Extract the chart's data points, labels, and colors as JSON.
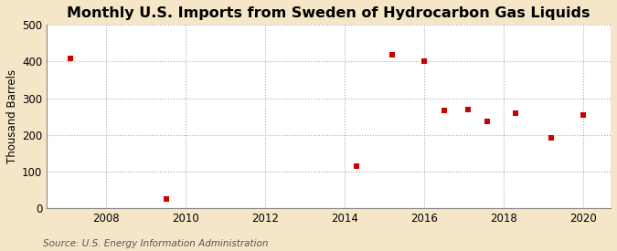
{
  "title": "Monthly U.S. Imports from Sweden of Hydrocarbon Gas Liquids",
  "ylabel": "Thousand Barrels",
  "source": "Source: U.S. Energy Information Administration",
  "fig_background_color": "#f5e6c8",
  "plot_background_color": "#ffffff",
  "scatter_color": "#cc0000",
  "x_data": [
    2007.1,
    2009.5,
    2014.3,
    2015.2,
    2016.0,
    2016.5,
    2017.1,
    2017.6,
    2018.3,
    2019.2,
    2020.0
  ],
  "y_data": [
    408,
    25,
    115,
    418,
    400,
    268,
    270,
    237,
    260,
    193,
    255
  ],
  "xlim": [
    2006.5,
    2020.7
  ],
  "ylim": [
    0,
    500
  ],
  "xticks": [
    2008,
    2010,
    2012,
    2014,
    2016,
    2018,
    2020
  ],
  "yticks": [
    0,
    100,
    200,
    300,
    400,
    500
  ],
  "marker": "s",
  "marker_size": 20,
  "title_fontsize": 11.5,
  "label_fontsize": 8.5,
  "tick_fontsize": 8.5,
  "source_fontsize": 7.5
}
